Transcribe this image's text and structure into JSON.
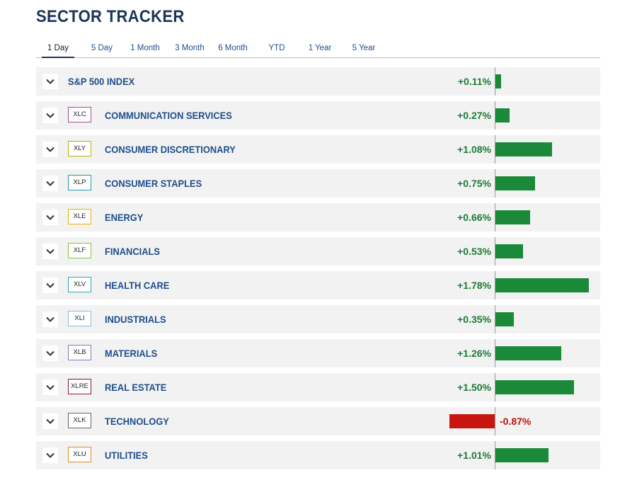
{
  "title": "SECTOR TRACKER",
  "tabs": [
    {
      "label": "1 Day",
      "active": true
    },
    {
      "label": "5 Day",
      "active": false
    },
    {
      "label": "1 Month",
      "active": false
    },
    {
      "label": "3 Month",
      "active": false
    },
    {
      "label": "6 Month",
      "active": false
    },
    {
      "label": "YTD",
      "active": false
    },
    {
      "label": "1 Year",
      "active": false
    },
    {
      "label": "5 Year",
      "active": false
    }
  ],
  "colors": {
    "positive": "#1a8a3a",
    "negative": "#c8150f",
    "title": "#1d3557",
    "link": "#1f4e8c"
  },
  "rows": [
    {
      "ticker": "",
      "name": "S&P 500 INDEX",
      "change": "+0.11%",
      "value": 0.11,
      "ticker_color": ""
    },
    {
      "ticker": "XLC",
      "name": "COMMUNICATION SERVICES",
      "change": "+0.27%",
      "value": 0.27,
      "ticker_color": "#a0509a"
    },
    {
      "ticker": "XLY",
      "name": "CONSUMER DISCRETIONARY",
      "change": "+1.08%",
      "value": 1.08,
      "ticker_color": "#b5b400"
    },
    {
      "ticker": "XLP",
      "name": "CONSUMER STAPLES",
      "change": "+0.75%",
      "value": 0.75,
      "ticker_color": "#1a9fb0"
    },
    {
      "ticker": "XLE",
      "name": "ENERGY",
      "change": "+0.66%",
      "value": 0.66,
      "ticker_color": "#e8b100"
    },
    {
      "ticker": "XLF",
      "name": "FINANCIALS",
      "change": "+0.53%",
      "value": 0.53,
      "ticker_color": "#8cc43c"
    },
    {
      "ticker": "XLV",
      "name": "HEALTH CARE",
      "change": "+1.78%",
      "value": 1.78,
      "ticker_color": "#2aa9c9"
    },
    {
      "ticker": "XLI",
      "name": "INDUSTRIALS",
      "change": "+0.35%",
      "value": 0.35,
      "ticker_color": "#7fc1e0"
    },
    {
      "ticker": "XLB",
      "name": "MATERIALS",
      "change": "+1.26%",
      "value": 1.26,
      "ticker_color": "#7b7fc0"
    },
    {
      "ticker": "XLRE",
      "name": "REAL ESTATE",
      "change": "+1.50%",
      "value": 1.5,
      "ticker_color": "#8b1a2e"
    },
    {
      "ticker": "XLK",
      "name": "TECHNOLOGY",
      "change": "-0.87%",
      "value": -0.87,
      "ticker_color": "#666666"
    },
    {
      "ticker": "XLU",
      "name": "UTILITIES",
      "change": "+1.01%",
      "value": 1.01,
      "ticker_color": "#e88a1a"
    }
  ]
}
